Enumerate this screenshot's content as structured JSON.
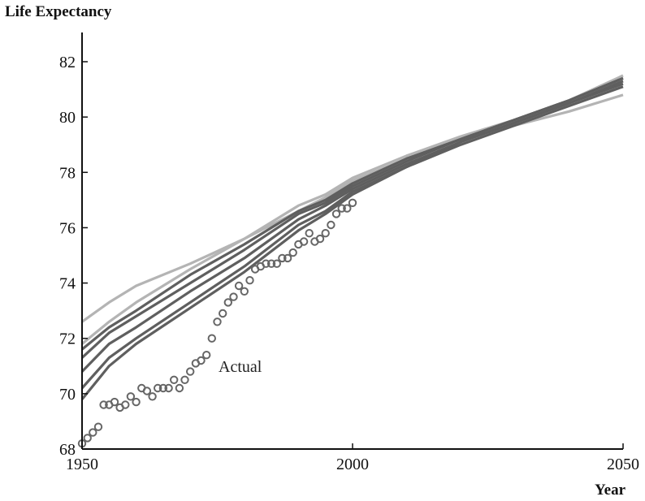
{
  "chart_data": {
    "type": "line",
    "ylabel": "Life Expectancy",
    "xlabel": "Year",
    "xlim": [
      1950,
      2050
    ],
    "ylim": [
      68,
      83
    ],
    "xticks": [
      1950,
      2000,
      2050
    ],
    "yticks": [
      68,
      70,
      72,
      74,
      76,
      78,
      80,
      82
    ],
    "grid": false,
    "annotation": "Actual",
    "colors": {
      "axis": "#111111",
      "light_series": "#b4b4b4",
      "dark_series": "#5f5f5f",
      "markers": "#666666"
    },
    "series": [
      {
        "style": "light",
        "x": [
          1950,
          1955,
          1960,
          1970,
          1980,
          1990,
          1995,
          2000,
          2010,
          2020,
          2030,
          2040,
          2050
        ],
        "y": [
          72.6,
          73.3,
          73.9,
          74.7,
          75.6,
          76.6,
          77.1,
          77.7,
          78.5,
          79.2,
          79.7,
          80.2,
          80.8
        ]
      },
      {
        "style": "light",
        "x": [
          1950,
          1955,
          1960,
          1970,
          1980,
          1990,
          1995,
          2000,
          2010,
          2020,
          2030,
          2040,
          2050
        ],
        "y": [
          71.8,
          72.6,
          73.3,
          74.5,
          75.6,
          76.8,
          77.2,
          77.8,
          78.6,
          79.3,
          79.9,
          80.6,
          81.5
        ]
      },
      {
        "style": "dark",
        "x": [
          1950,
          1955,
          1960,
          1970,
          1980,
          1990,
          1995,
          2000,
          2010,
          2020,
          2030,
          2040,
          2050
        ],
        "y": [
          71.6,
          72.4,
          73.0,
          74.3,
          75.4,
          76.6,
          77.0,
          77.6,
          78.5,
          79.2,
          79.9,
          80.6,
          81.4
        ]
      },
      {
        "style": "dark",
        "x": [
          1950,
          1955,
          1960,
          1970,
          1980,
          1990,
          1995,
          2000,
          2010,
          2020,
          2030,
          2040,
          2050
        ],
        "y": [
          71.3,
          72.2,
          72.8,
          74.0,
          75.2,
          76.5,
          76.9,
          77.5,
          78.4,
          79.2,
          79.9,
          80.6,
          81.4
        ]
      },
      {
        "style": "dark",
        "x": [
          1950,
          1955,
          1960,
          1970,
          1980,
          1990,
          1995,
          2000,
          2010,
          2020,
          2030,
          2040,
          2050
        ],
        "y": [
          70.8,
          71.8,
          72.4,
          73.7,
          74.9,
          76.3,
          76.8,
          77.4,
          78.3,
          79.1,
          79.8,
          80.5,
          81.3
        ]
      },
      {
        "style": "dark",
        "x": [
          1950,
          1955,
          1960,
          1970,
          1980,
          1990,
          1995,
          2000,
          2010,
          2020,
          2030,
          2040,
          2050
        ],
        "y": [
          70.2,
          71.3,
          72.0,
          73.3,
          74.6,
          76.1,
          76.6,
          77.3,
          78.2,
          79.1,
          79.8,
          80.5,
          81.2
        ]
      },
      {
        "style": "dark",
        "x": [
          1950,
          1955,
          1960,
          1970,
          1980,
          1990,
          1995,
          2000,
          2010,
          2020,
          2030,
          2040,
          2050
        ],
        "y": [
          69.8,
          71.0,
          71.8,
          73.1,
          74.4,
          75.9,
          76.5,
          77.2,
          78.2,
          79.0,
          79.7,
          80.4,
          81.1
        ]
      }
    ],
    "actual": {
      "x": [
        1950,
        1951,
        1952,
        1953,
        1954,
        1955,
        1956,
        1957,
        1958,
        1959,
        1960,
        1961,
        1962,
        1963,
        1964,
        1965,
        1966,
        1967,
        1968,
        1969,
        1970,
        1971,
        1972,
        1973,
        1974,
        1975,
        1976,
        1977,
        1978,
        1979,
        1980,
        1981,
        1982,
        1983,
        1984,
        1985,
        1986,
        1987,
        1988,
        1989,
        1990,
        1991,
        1992,
        1993,
        1994,
        1995,
        1996,
        1997,
        1998,
        1999,
        2000
      ],
      "y": [
        68.2,
        68.4,
        68.6,
        68.8,
        69.6,
        69.6,
        69.7,
        69.5,
        69.6,
        69.9,
        69.7,
        70.2,
        70.1,
        69.9,
        70.2,
        70.2,
        70.2,
        70.5,
        70.2,
        70.5,
        70.8,
        71.1,
        71.2,
        71.4,
        72.0,
        72.6,
        72.9,
        73.3,
        73.5,
        73.9,
        73.7,
        74.1,
        74.5,
        74.6,
        74.7,
        74.7,
        74.7,
        74.9,
        74.9,
        75.1,
        75.4,
        75.5,
        75.8,
        75.5,
        75.6,
        75.8,
        76.1,
        76.5,
        76.7,
        76.7,
        76.9
      ]
    }
  }
}
